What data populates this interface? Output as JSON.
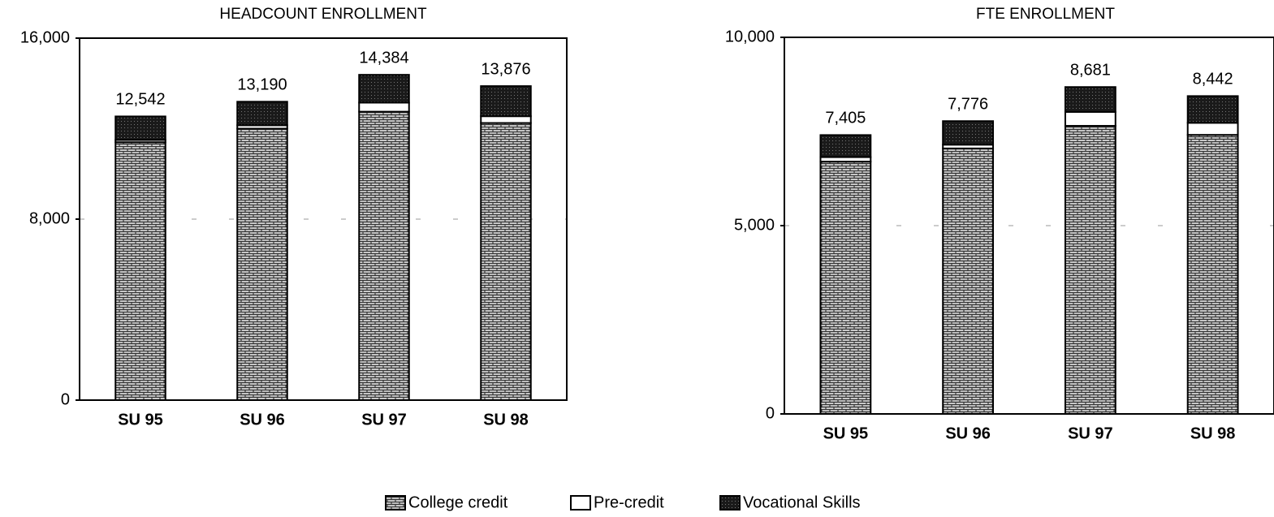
{
  "chart_data": [
    {
      "type": "bar",
      "stacked": true,
      "title": "HEADCOUNT ENROLLMENT",
      "categories": [
        "SU 95",
        "SU 96",
        "SU 97",
        "SU 98"
      ],
      "series": [
        {
          "name": "College credit",
          "color": "#d0d0d0",
          "pattern": "brick",
          "values": [
            11400,
            12000,
            12750,
            12250
          ]
        },
        {
          "name": "Pre-credit",
          "color": "#ffffff",
          "pattern": "none",
          "values": [
            100,
            150,
            400,
            300
          ]
        },
        {
          "name": "Vocational Skills",
          "color": "#1a1a1a",
          "pattern": "stipple",
          "values": [
            1040,
            1040,
            1230,
            1330
          ]
        }
      ],
      "totals": [
        12542,
        13190,
        14384,
        13876
      ],
      "total_labels": [
        "12,542",
        "13,190",
        "14,384",
        "13,876"
      ],
      "ylim": [
        0,
        16000
      ],
      "yticks": [
        0,
        {
          "value": 8000,
          "label": "8,000"
        },
        {
          "value": 16000,
          "label": "16,000"
        }
      ],
      "grid": true
    },
    {
      "type": "bar",
      "stacked": true,
      "title": "FTE ENROLLMENT",
      "categories": [
        "SU 95",
        "SU 96",
        "SU 97",
        "SU 98"
      ],
      "series": [
        {
          "name": "College credit",
          "color": "#d0d0d0",
          "pattern": "brick",
          "values": [
            6700,
            7050,
            7650,
            7410
          ]
        },
        {
          "name": "Pre-credit",
          "color": "#ffffff",
          "pattern": "none",
          "values": [
            120,
            100,
            370,
            320
          ]
        },
        {
          "name": "Vocational Skills",
          "color": "#1a1a1a",
          "pattern": "stipple",
          "values": [
            585,
            625,
            660,
            710
          ]
        }
      ],
      "totals": [
        7405,
        7776,
        8681,
        8442
      ],
      "total_labels": [
        "7,405",
        "7,776",
        "8,681",
        "8,442"
      ],
      "ylim": [
        0,
        10000
      ],
      "yticks": [
        0,
        {
          "value": 5000,
          "label": "5,000"
        },
        {
          "value": 10000,
          "label": "10,000"
        }
      ],
      "grid": true
    }
  ]
}
